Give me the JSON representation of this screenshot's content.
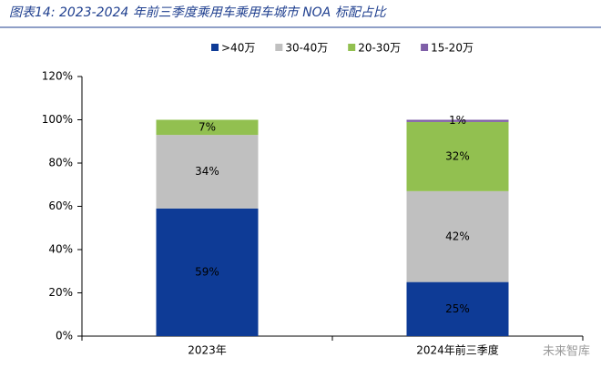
{
  "chart_data": {
    "type": "stacked_bar",
    "title": "图表14:  2023-2024 年前三季度乘用车乘用车城市 NOA 标配占比",
    "categories": [
      "2023年",
      "2024年前三季度"
    ],
    "series": [
      {
        "name": ">40万",
        "color": "#0e3b96",
        "values": [
          59,
          25
        ],
        "value_labels": [
          "59%",
          "25%"
        ]
      },
      {
        "name": "30-40万",
        "color": "#c0c0c0",
        "values": [
          34,
          42
        ],
        "value_labels": [
          "34%",
          "42%"
        ]
      },
      {
        "name": "20-30万",
        "color": "#92c050",
        "values": [
          7,
          32
        ],
        "value_labels": [
          "7%",
          "32%"
        ]
      },
      {
        "name": "15-20万",
        "color": "#7f5fa8",
        "values": [
          0,
          1
        ],
        "value_labels": [
          null,
          "1%"
        ]
      }
    ],
    "ylim": [
      0,
      120
    ],
    "yticks": [
      {
        "value": 0,
        "label": "0%"
      },
      {
        "value": 20,
        "label": "20%"
      },
      {
        "value": 40,
        "label": "40%"
      },
      {
        "value": 60,
        "label": "60%"
      },
      {
        "value": 80,
        "label": "80%"
      },
      {
        "value": 100,
        "label": "100%"
      },
      {
        "value": 120,
        "label": "120%"
      }
    ],
    "legend": "top",
    "watermark": "未来智库"
  }
}
